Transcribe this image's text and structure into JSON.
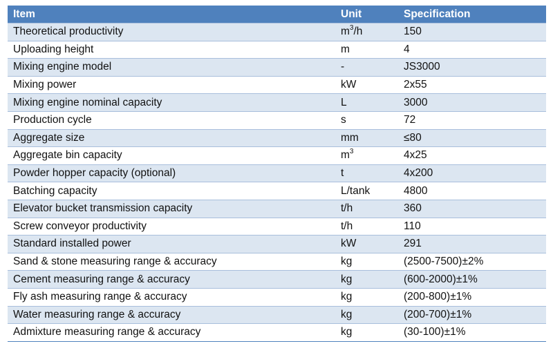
{
  "header": {
    "item": "Item",
    "unit": "Unit",
    "spec": "Specification"
  },
  "rows": [
    {
      "item": "Theoretical productivity",
      "unit": "m",
      "unit_sup": "3",
      "unit_after": "/h",
      "spec": "150"
    },
    {
      "item": "Uploading height",
      "unit": "m",
      "spec": "4"
    },
    {
      "item": "Mixing engine model",
      "unit": "-",
      "spec": "JS3000"
    },
    {
      "item": "Mixing power",
      "unit": "kW",
      "spec": "2x55"
    },
    {
      "item": "Mixing engine nominal capacity",
      "unit": "L",
      "spec": "3000"
    },
    {
      "item": "Production cycle",
      "unit": "s",
      "spec": "72"
    },
    {
      "item": "Aggregate size",
      "unit": "mm",
      "spec": "≤80"
    },
    {
      "item": "Aggregate bin capacity",
      "unit": "m",
      "unit_sup": "3",
      "unit_after": "",
      "spec": "4x25"
    },
    {
      "item": "Powder hopper capacity (optional)",
      "unit": "t",
      "spec": "4x200"
    },
    {
      "item": "Batching capacity",
      "unit": "L/tank",
      "spec": "4800"
    },
    {
      "item": "Elevator bucket transmission capacity",
      "unit": "t/h",
      "spec": "360"
    },
    {
      "item": "Screw conveyor productivity",
      "unit": "t/h",
      "spec": "110"
    },
    {
      "item": "Standard installed power",
      "unit": "kW",
      "spec": "291"
    },
    {
      "item": "Sand & stone measuring range & accuracy",
      "unit": "kg",
      "spec": "(2500-7500)±2%"
    },
    {
      "item": "Cement measuring range & accuracy",
      "unit": "kg",
      "spec": "(600-2000)±1%"
    },
    {
      "item": "Fly ash measuring range & accuracy",
      "unit": "kg",
      "spec": "(200-800)±1%"
    },
    {
      "item": "Water measuring range & accuracy",
      "unit": "kg",
      "spec": "(200-700)±1%"
    },
    {
      "item": "Admixture measuring range & accuracy",
      "unit": "kg",
      "spec": "(30-100)±1%"
    }
  ],
  "colors": {
    "header_bg": "#4f81bd",
    "band_bg": "#dce6f1",
    "header_text": "#ffffff"
  }
}
